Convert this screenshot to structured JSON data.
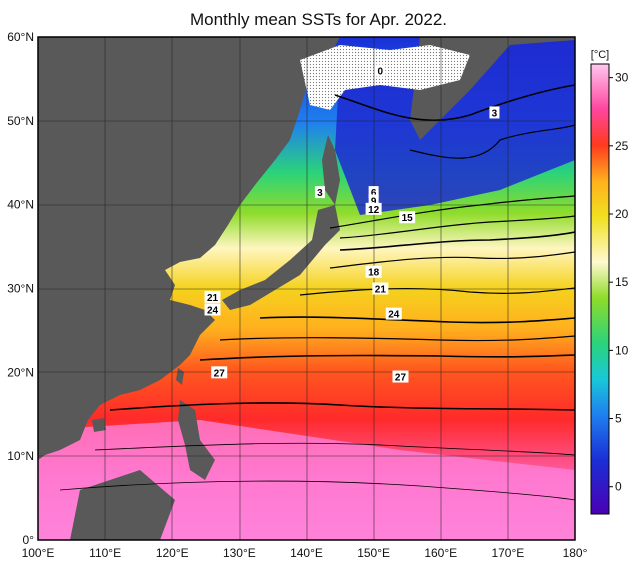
{
  "title": "Monthly mean SSTs for Apr. 2022.",
  "map": {
    "lat_ticks": [
      "60°N",
      "50°N",
      "40°N",
      "30°N",
      "20°N",
      "10°N",
      "0°"
    ],
    "lon_ticks": [
      "100°E",
      "110°E",
      "120°E",
      "130°E",
      "140°E",
      "150°E",
      "160°E",
      "170°E",
      "180°"
    ],
    "lat_range": [
      0,
      60
    ],
    "lon_range": [
      100,
      180
    ],
    "land_color": "#595959",
    "ice_pattern": "stippled white",
    "contour_labels": [
      {
        "text": "0",
        "lon": 151,
        "lat": 56
      },
      {
        "text": "3",
        "lon": 168,
        "lat": 51
      },
      {
        "text": "3",
        "lon": 142,
        "lat": 41.5
      },
      {
        "text": "6",
        "lon": 150,
        "lat": 41.5
      },
      {
        "text": "9",
        "lon": 150,
        "lat": 40.5
      },
      {
        "text": "12",
        "lon": 150,
        "lat": 39.5
      },
      {
        "text": "15",
        "lon": 155,
        "lat": 38.5
      },
      {
        "text": "18",
        "lon": 150,
        "lat": 32
      },
      {
        "text": "21",
        "lon": 151,
        "lat": 30
      },
      {
        "text": "21",
        "lon": 126,
        "lat": 29
      },
      {
        "text": "24",
        "lon": 126,
        "lat": 27.5
      },
      {
        "text": "24",
        "lon": 153,
        "lat": 27
      },
      {
        "text": "27",
        "lon": 127,
        "lat": 20
      },
      {
        "text": "27",
        "lon": 154,
        "lat": 19.5
      }
    ]
  },
  "colorbar": {
    "unit": "[°C]",
    "range": [
      -2,
      31
    ],
    "ticks": [
      "30",
      "25",
      "20",
      "15",
      "10",
      "5",
      "0"
    ],
    "tick_values": [
      30,
      25,
      20,
      15,
      10,
      5,
      0
    ],
    "colors": [
      "#4a00b4",
      "#1a2fd6",
      "#1f7ff0",
      "#19c8d8",
      "#2bd37a",
      "#38c82a",
      "#8fdc2a",
      "#f0f020",
      "#f5d21e",
      "#f5f5d2",
      "#fff9b4",
      "#ffb01e",
      "#ff6a1e",
      "#ff1e1e",
      "#ff46a0",
      "#ff8fdc",
      "#ffc8f0"
    ]
  }
}
